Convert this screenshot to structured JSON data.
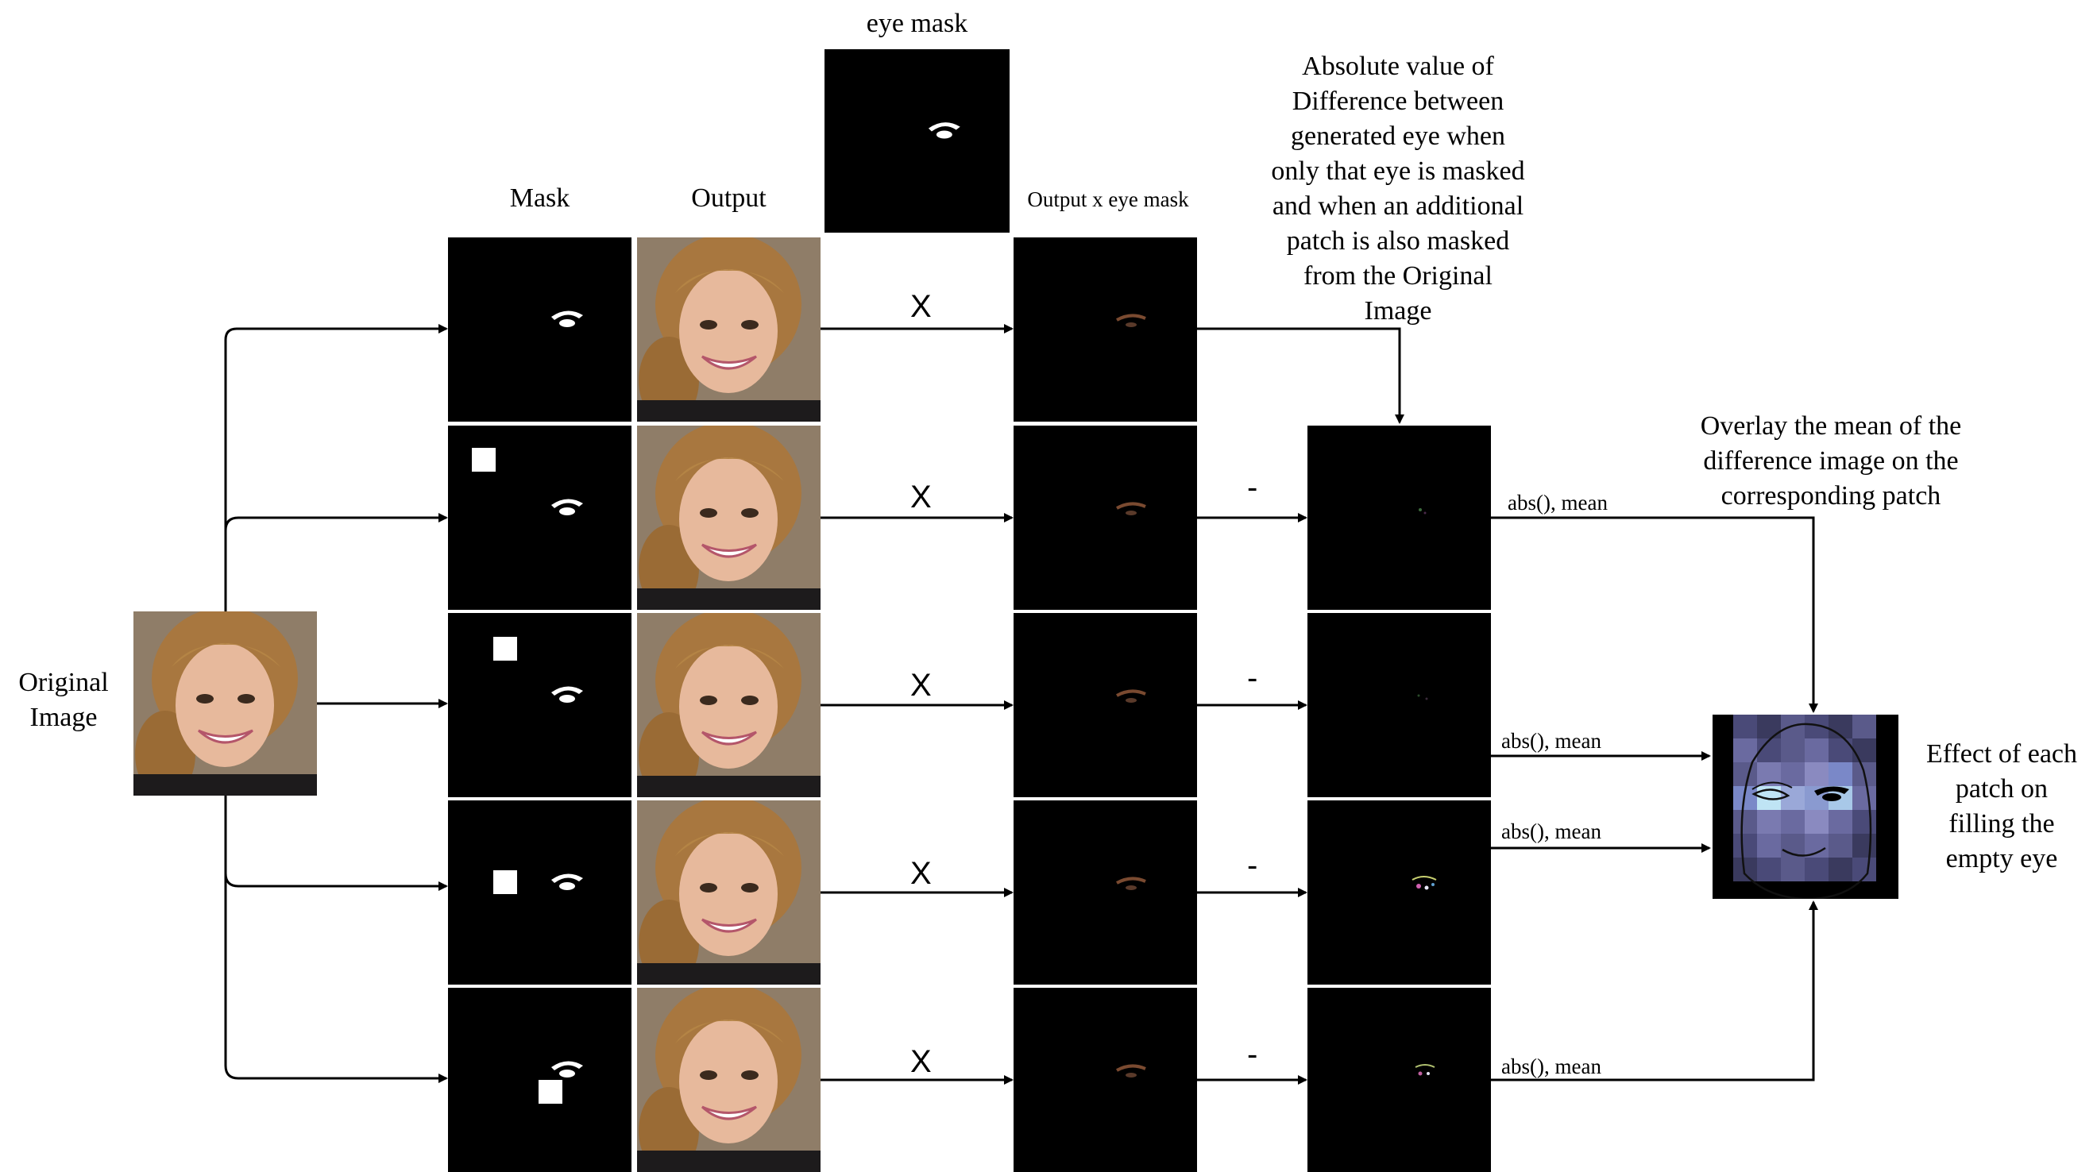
{
  "labels": {
    "original_image": "Original\nImage",
    "mask_header": "Mask",
    "output_header": "Output",
    "eye_mask_header": "eye mask",
    "output_x_eye_mask_header": "Output x eye mask",
    "absolute_difference_caption": "Absolute value of\nDifference between\ngenerated eye when\nonly that eye is masked\nand when an additional\npatch is also masked\nfrom the Original\nImage",
    "overlay_caption": "Overlay the mean of the\ndifference image on the\ncorresponding patch",
    "effect_caption": "Effect of each\npatch on\nfilling the\nempty eye"
  },
  "operators": {
    "multiply": "X",
    "subtract": "-",
    "abs_mean": "abs(), mean"
  },
  "colors": {
    "background": "#ffffff",
    "arrow": "#000000",
    "mask_background": "#000000",
    "mask_white": "#ffffff",
    "heatmap_dark": "#3a3a5e",
    "heatmap_mid": "#6a6aa0",
    "heatmap_light": "#9aa8d8",
    "heatmap_highlight": "#bfe4f4"
  }
}
